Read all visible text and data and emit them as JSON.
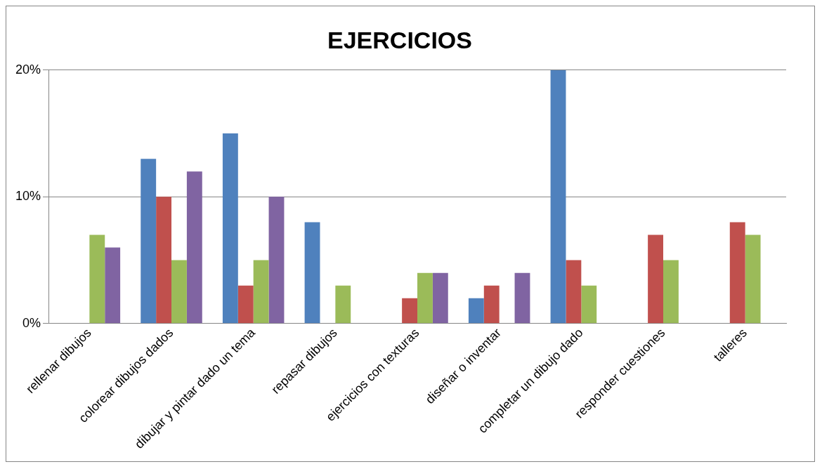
{
  "chart_data": {
    "type": "bar",
    "title": "EJERCICIOS",
    "categories": [
      "rellenar dibujos",
      "colorear dibujos dados",
      "dibujar y pintar dado un tema",
      "repasar dibujos",
      "ejercicios con texturas",
      "diseñar o inventar",
      "completar un dibujo dado",
      "responder cuestiones",
      "talleres"
    ],
    "series": [
      {
        "color": "#4f81bd",
        "values": [
          0,
          13,
          15,
          8,
          0,
          2,
          20,
          0,
          0
        ]
      },
      {
        "color": "#c0504d",
        "values": [
          0,
          10,
          3,
          0,
          2,
          3,
          5,
          7,
          8
        ]
      },
      {
        "color": "#9bbb59",
        "values": [
          7,
          5,
          5,
          3,
          4,
          0,
          3,
          5,
          7
        ]
      },
      {
        "color": "#8064a2",
        "values": [
          6,
          12,
          10,
          0,
          4,
          4,
          0,
          0,
          0
        ]
      }
    ],
    "ylim": [
      0,
      20
    ],
    "yticks": [
      {
        "value": 0,
        "label": "0%"
      },
      {
        "value": 10,
        "label": "10%"
      },
      {
        "value": 20,
        "label": "20%"
      }
    ],
    "grid": "y",
    "legend": false
  }
}
